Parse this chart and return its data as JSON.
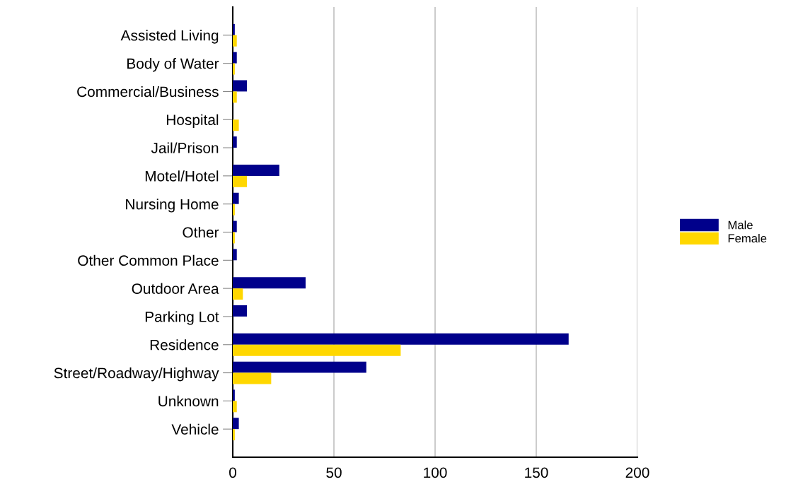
{
  "chart_data": {
    "type": "bar",
    "orientation": "horizontal",
    "categories": [
      "Assisted Living",
      "Body of Water",
      "Commercial/Business",
      "Hospital",
      "Jail/Prison",
      "Motel/Hotel",
      "Nursing Home",
      "Other",
      "Other Common Place",
      "Outdoor Area",
      "Parking Lot",
      "Residence",
      "Street/Roadway/Highway",
      "Unknown",
      "Vehicle"
    ],
    "series": [
      {
        "name": "Male",
        "color": "#00008b",
        "values": [
          1,
          2,
          7,
          0,
          2,
          23,
          3,
          2,
          2,
          36,
          7,
          166,
          66,
          1,
          3
        ]
      },
      {
        "name": "Female",
        "color": "#ffd700",
        "values": [
          2,
          1,
          2,
          3,
          0,
          7,
          1,
          1,
          0,
          5,
          0,
          83,
          19,
          2,
          1
        ]
      }
    ],
    "xlim": [
      0,
      200
    ],
    "xticks": [
      0,
      50,
      100,
      150,
      200
    ],
    "grid": "x",
    "legend": "right"
  }
}
